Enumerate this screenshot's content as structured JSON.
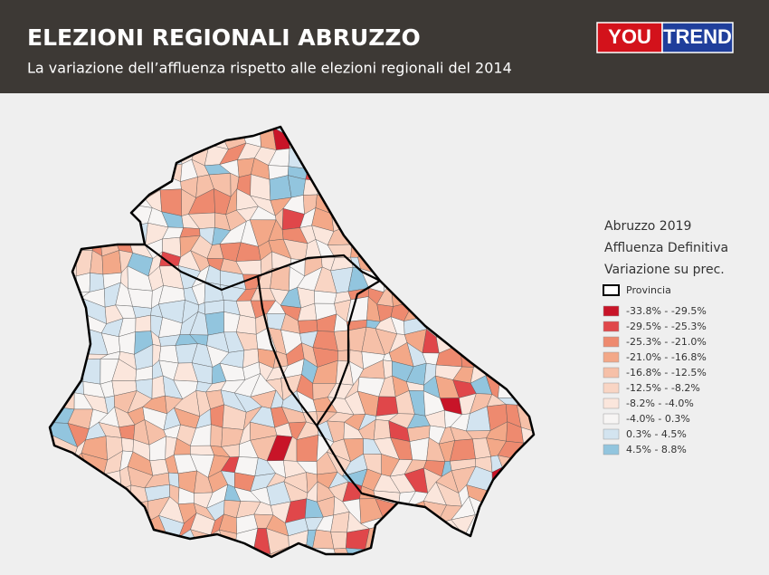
{
  "header": {
    "title": "ELEZIONI REGIONALI ABRUZZO",
    "subtitle": "La variazione dell’affluenza rispetto alle elezioni regionali del 2014",
    "logo": [
      "YOU",
      "TREND"
    ]
  },
  "legend": {
    "title": [
      "Abruzzo 2019",
      "Affluenza Definitiva",
      "Variazione su prec."
    ],
    "border_label": "Provincia",
    "items": [
      {
        "label": "-33.8% - -29.5%",
        "color": "#c81428"
      },
      {
        "label": "-29.5% - -25.3%",
        "color": "#e0474a"
      },
      {
        "label": "-25.3% - -21.0%",
        "color": "#ee8a6f"
      },
      {
        "label": "-21.0% - -16.8%",
        "color": "#f3a888"
      },
      {
        "label": "-16.8% - -12.5%",
        "color": "#f6c0a8"
      },
      {
        "label": "-12.5% - -8.2%",
        "color": "#f9d5c4"
      },
      {
        "label": "-8.2% - -4.0%",
        "color": "#fbe6dc"
      },
      {
        "label": "-4.0% - 0.3%",
        "color": "#f7f5f4"
      },
      {
        "label": "0.3% - 4.5%",
        "color": "#d3e4f0"
      },
      {
        "label": "4.5% - 8.8%",
        "color": "#92c5de"
      }
    ]
  }
}
